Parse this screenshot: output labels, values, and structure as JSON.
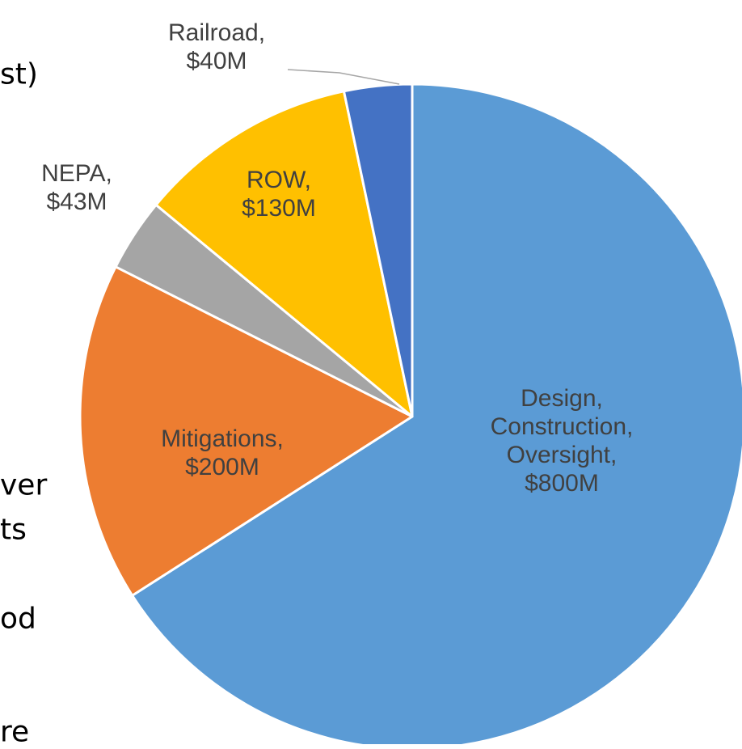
{
  "chart_data": {
    "type": "pie",
    "categories": [
      "Design, Construction, Oversight,",
      "Mitigations,",
      "NEPA,",
      "ROW,",
      "Railroad,"
    ],
    "values": [
      800,
      200,
      43,
      130,
      40
    ],
    "value_labels": [
      "$800M",
      "$200M",
      "$43M",
      "$130M",
      "$40M"
    ],
    "colors": [
      "#5b9bd5",
      "#ed7d31",
      "#a5a5a5",
      "#ffc000",
      "#4472c4"
    ],
    "annotations": [
      "st)",
      "ver",
      "ts",
      "od",
      "re"
    ]
  }
}
